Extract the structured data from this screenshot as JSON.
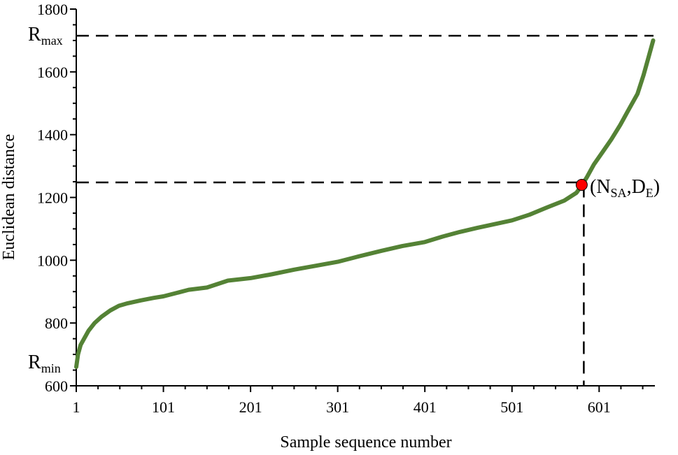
{
  "chart_data": {
    "type": "line",
    "xlabel": "Sample sequence number",
    "ylabel": "Euclidean distance",
    "xlim": [
      1,
      665
    ],
    "ylim": [
      600,
      1800
    ],
    "x_ticks": [
      1,
      101,
      201,
      301,
      401,
      501,
      601
    ],
    "y_ticks": [
      600,
      800,
      1000,
      1200,
      1400,
      1600,
      1800
    ],
    "grid": false,
    "series": [
      {
        "color": "#548235",
        "x": [
          1,
          3,
          6,
          10,
          15,
          22,
          30,
          40,
          50,
          60,
          75,
          90,
          101,
          115,
          130,
          151,
          175,
          201,
          225,
          251,
          275,
          301,
          325,
          351,
          375,
          401,
          421,
          441,
          461,
          481,
          501,
          521,
          541,
          561,
          575,
          581,
          587,
          595,
          605,
          615,
          625,
          635,
          645,
          652,
          658,
          663
        ],
        "y": [
          660,
          700,
          730,
          750,
          775,
          800,
          820,
          840,
          855,
          863,
          872,
          880,
          885,
          895,
          906,
          913,
          935,
          943,
          955,
          970,
          982,
          995,
          1012,
          1030,
          1045,
          1058,
          1075,
          1090,
          1103,
          1115,
          1127,
          1145,
          1168,
          1190,
          1215,
          1238,
          1265,
          1305,
          1345,
          1385,
          1430,
          1480,
          1530,
          1590,
          1650,
          1700
        ]
      }
    ],
    "reference_lines": [
      {
        "type": "horizontal",
        "y": 1715,
        "label": "R",
        "label_sub": "max"
      },
      {
        "type": "horizontal",
        "y": 1248
      },
      {
        "type": "vertical",
        "x": 581
      }
    ],
    "annotations": [
      {
        "label": "R",
        "label_sub": "min",
        "y": 660
      }
    ],
    "marker": {
      "x": 581,
      "y": 1240,
      "color": "#ff0000",
      "label_parts": [
        "(N",
        "SA",
        ",D",
        "E",
        ")"
      ]
    }
  }
}
